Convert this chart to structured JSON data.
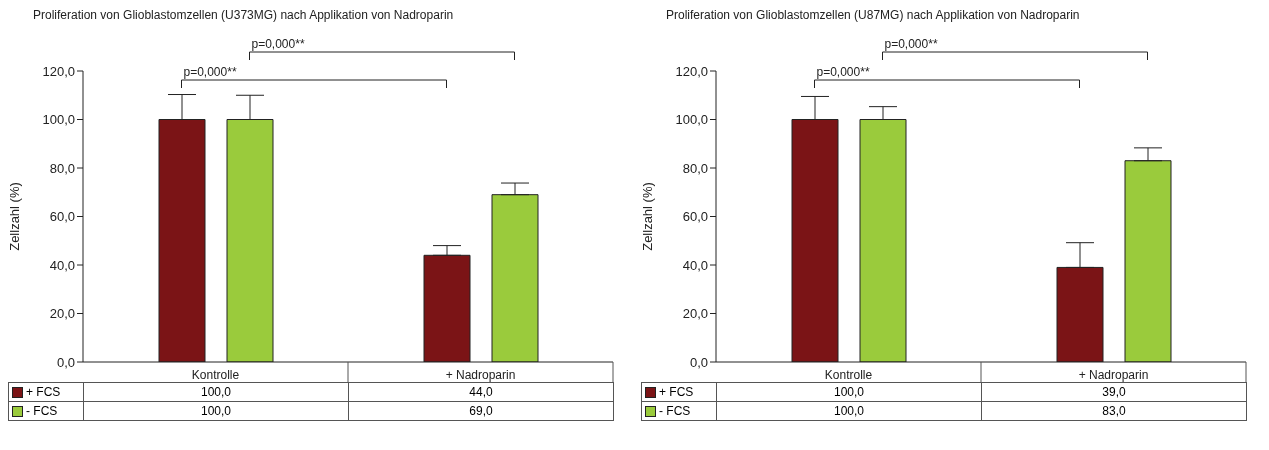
{
  "chart_data": [
    {
      "type": "bar",
      "title": "Proliferation von Glioblastomzellen (U373MG) nach Applikation von Nadroparin",
      "ylabel": "Zellzahl (%)",
      "categories": [
        "Kontrolle",
        "+ Nadroparin"
      ],
      "series": [
        {
          "name": "+ FCS",
          "color": "#7b1416",
          "values": [
            100,
            44
          ],
          "errors": [
            [
              100,
              110.3
            ],
            [
              44,
              48
            ]
          ],
          "value_labels": [
            "100,0",
            "44,0"
          ]
        },
        {
          "name": "- FCS",
          "color": "#9acb3c",
          "values": [
            100,
            69
          ],
          "errors": [
            [
              100,
              110
            ],
            [
              69,
              73.8
            ]
          ],
          "value_labels": [
            "100,0",
            "69,0"
          ]
        }
      ],
      "ylim": [
        0,
        120
      ],
      "yticks": [
        {
          "value": 0,
          "label": "0,0"
        },
        {
          "value": 20,
          "label": "20,0"
        },
        {
          "value": 40,
          "label": "40,0"
        },
        {
          "value": 60,
          "label": "60,0"
        },
        {
          "value": 80,
          "label": "80,0"
        },
        {
          "value": 100,
          "label": "100,0"
        },
        {
          "value": 120,
          "label": "120,0"
        }
      ],
      "annotations": [
        "p=0,000**",
        "p=0,000**"
      ],
      "legend": "bottom",
      "grid": false
    },
    {
      "type": "bar",
      "title": "Proliferation von Glioblastomzellen (U87MG) nach Applikation von Nadroparin",
      "ylabel": "Zellzahl (%)",
      "categories": [
        "Kontrolle",
        "+ Nadroparin"
      ],
      "series": [
        {
          "name": "+ FCS",
          "color": "#7b1416",
          "values": [
            100,
            39
          ],
          "errors": [
            [
              100,
              109.5
            ],
            [
              39,
              49.2
            ]
          ],
          "value_labels": [
            "100,0",
            "39,0"
          ]
        },
        {
          "name": "- FCS",
          "color": "#9acb3c",
          "values": [
            100,
            83
          ],
          "errors": [
            [
              100,
              105.3
            ],
            [
              83,
              88.3
            ]
          ],
          "value_labels": [
            "100,0",
            "83,0"
          ]
        }
      ],
      "ylim": [
        0,
        120
      ],
      "yticks": [
        {
          "value": 0,
          "label": "0,0"
        },
        {
          "value": 20,
          "label": "20,0"
        },
        {
          "value": 40,
          "label": "40,0"
        },
        {
          "value": 60,
          "label": "60,0"
        },
        {
          "value": 80,
          "label": "80,0"
        },
        {
          "value": 100,
          "label": "100,0"
        },
        {
          "value": 120,
          "label": "120,0"
        }
      ],
      "annotations": [
        "p=0,000**",
        "p=0,000**"
      ],
      "legend": "bottom",
      "grid": false
    }
  ]
}
